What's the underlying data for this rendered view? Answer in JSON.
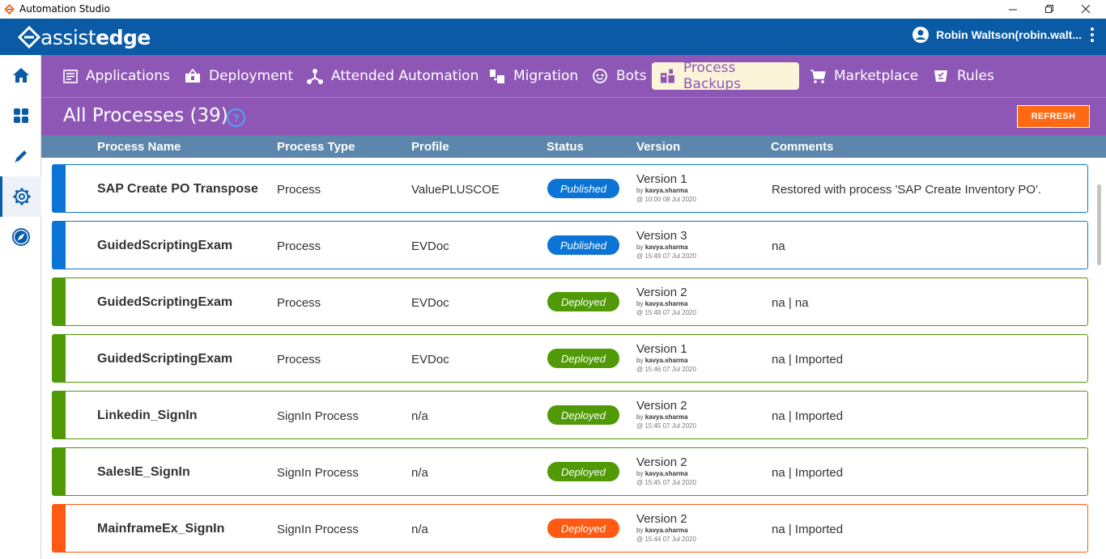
{
  "window": {
    "title": "Automation Studio"
  },
  "brand": {
    "logo_light": "assist",
    "logo_bold": "edge"
  },
  "user": {
    "name": "Robin Waltson(robin.walt..."
  },
  "sidebar": {
    "items": [
      {
        "icon": "home-icon"
      },
      {
        "icon": "dashboard-icon"
      },
      {
        "icon": "pencil-icon"
      },
      {
        "icon": "gear-icon"
      },
      {
        "icon": "compass-icon"
      }
    ]
  },
  "nav": {
    "items": [
      {
        "label": "Applications"
      },
      {
        "label": "Deployment"
      },
      {
        "label": "Attended Automation"
      },
      {
        "label": "Migration"
      },
      {
        "label": "Bots"
      },
      {
        "label": "Process Backups"
      },
      {
        "label": "Marketplace"
      },
      {
        "label": "Rules"
      }
    ]
  },
  "header": {
    "title": "All Processes (39)",
    "help": "?",
    "refresh_label": "REFRESH"
  },
  "columns": {
    "name": "Process Name",
    "type": "Process Type",
    "profile": "Profile",
    "status": "Status",
    "version": "Version",
    "comments": "Comments"
  },
  "colors": {
    "published": "#0b74d4",
    "deployed_green": "#4f9a06",
    "deployed_orange": "#ff5a14",
    "brand_blue": "#0a5aa6",
    "nav_purple": "#8e57b5"
  },
  "rows": [
    {
      "name": "SAP Create PO Transpose",
      "type": "Process",
      "profile": "ValuePLUSCOE",
      "status": "Published",
      "color": "#0b74d4",
      "version": "Version 1",
      "by_prefix": "by",
      "by": "kavya.sharma",
      "at": "@ 10:00 08 Jul 2020",
      "comment": "Restored with process 'SAP Create Inventory PO'."
    },
    {
      "name": "GuidedScriptingExam",
      "type": "Process",
      "profile": "EVDoc",
      "status": "Published",
      "color": "#0b74d4",
      "version": "Version 3",
      "by_prefix": "by",
      "by": "kavya.sharma",
      "at": "@ 15:49 07 Jul 2020",
      "comment": "na"
    },
    {
      "name": "GuidedScriptingExam",
      "type": "Process",
      "profile": "EVDoc",
      "status": "Deployed",
      "color": "#4f9a06",
      "version": "Version 2",
      "by_prefix": "by",
      "by": "kavya.sharma",
      "at": "@ 15:48 07 Jul 2020",
      "comment": "na | na"
    },
    {
      "name": "GuidedScriptingExam",
      "type": "Process",
      "profile": "EVDoc",
      "status": "Deployed",
      "color": "#4f9a06",
      "version": "Version 1",
      "by_prefix": "by",
      "by": "kavya.sharma",
      "at": "@ 15:46 07 Jul 2020",
      "comment": "na | Imported"
    },
    {
      "name": "Linkedin_SignIn",
      "type": "SignIn Process",
      "profile": "n/a",
      "status": "Deployed",
      "color": "#4f9a06",
      "version": "Version 2",
      "by_prefix": "by",
      "by": "kavya.sharma",
      "at": "@ 15:45 07 Jul 2020",
      "comment": "na | Imported"
    },
    {
      "name": "SalesIE_SignIn",
      "type": "SignIn Process",
      "profile": "n/a",
      "status": "Deployed",
      "color": "#4f9a06",
      "version": "Version 2",
      "by_prefix": "by",
      "by": "kavya.sharma",
      "at": "@ 15:45 07 Jul 2020",
      "comment": "na | Imported"
    },
    {
      "name": "MainframeEx_SignIn",
      "type": "SignIn Process",
      "profile": "n/a",
      "status": "Deployed",
      "color": "#ff5a14",
      "version": "Version 2",
      "by_prefix": "by",
      "by": "kavya.sharma",
      "at": "@ 15:44 07 Jul 2020",
      "comment": "na | Imported"
    }
  ]
}
